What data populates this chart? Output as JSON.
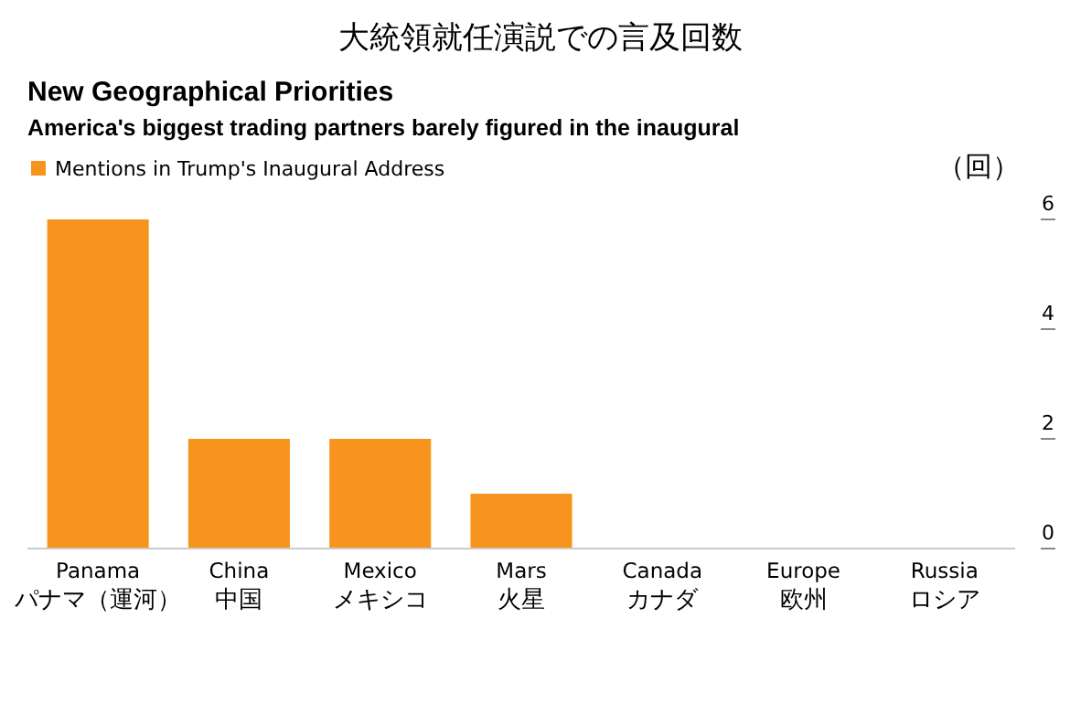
{
  "chart_data": {
    "type": "bar",
    "title": "大統領就任演説での言及回数",
    "subtitle": "New Geographical Priorities",
    "annotations": [
      "America's biggest trading partners barely figured in the inaugural"
    ],
    "ylabel": "（回）",
    "categories": [
      "Panama\nパナマ（運河）",
      "China\n中国",
      "Mexico\nメキシコ",
      "Mars\n火星",
      "Canada\nカナダ",
      "Europe\n欧州",
      "Russia\nロシア"
    ],
    "series": [
      {
        "name": "Mentions in Trump's Inaugural Address",
        "color": "#f7941d",
        "values": [
          6,
          2,
          2,
          1,
          0,
          0,
          0
        ]
      }
    ],
    "ylim": [
      0,
      6
    ],
    "yticks": [
      0,
      2,
      4,
      6
    ],
    "grid": false,
    "legend": "top left"
  }
}
